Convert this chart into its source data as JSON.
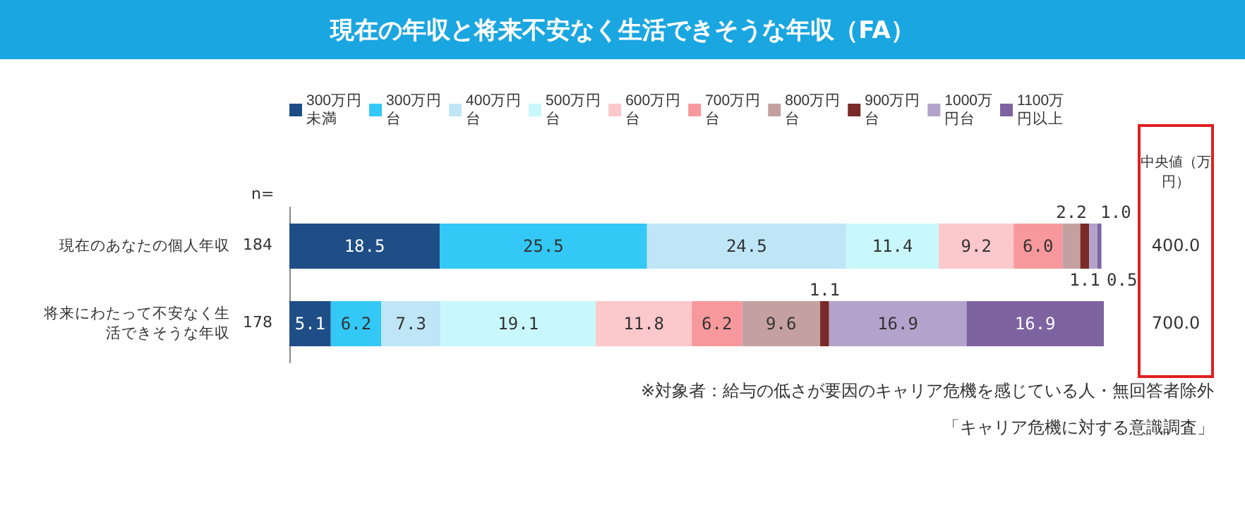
{
  "chart_data": {
    "type": "bar",
    "orientation": "horizontal",
    "stacked": true,
    "data_labels": true,
    "legend": "top",
    "title": "現在の年収と将来不安なく生活できそうな年収（FA）",
    "categories": [
      "現在のあなたの個人年収",
      "将来にわたって不安なく生活できそうな年収"
    ],
    "series": [
      {
        "name": "300万円未満",
        "color": "#1f4e87",
        "values": [
          18.5,
          5.1
        ]
      },
      {
        "name": "300万円台",
        "color": "#33c8f5",
        "values": [
          25.5,
          6.2
        ]
      },
      {
        "name": "400万円台",
        "color": "#bfe6f7",
        "values": [
          24.5,
          7.3
        ]
      },
      {
        "name": "500万円台",
        "color": "#c8f8fb",
        "values": [
          11.4,
          19.1
        ]
      },
      {
        "name": "600万円台",
        "color": "#fbc8cc",
        "values": [
          9.2,
          11.8
        ]
      },
      {
        "name": "700万円台",
        "color": "#f7999c",
        "values": [
          6.0,
          6.2
        ],
        "value_labels": [
          "6.0",
          "6.2"
        ]
      },
      {
        "name": "800万円台",
        "color": "#c4a1a0",
        "values": [
          2.2,
          9.6
        ]
      },
      {
        "name": "900万円台",
        "color": "#7a2a28",
        "values": [
          1.1,
          1.1
        ]
      },
      {
        "name": "1000万円台",
        "color": "#b3a3cc",
        "values": [
          1.0,
          16.9
        ],
        "value_labels": [
          "1.0",
          "16.9"
        ]
      },
      {
        "name": "1100万円以上",
        "color": "#7e63a1",
        "values": [
          0.5,
          16.9
        ]
      }
    ],
    "annotations": [
      "n=",
      "184",
      "178",
      "中央値（万円）",
      "400.0",
      "700.0",
      "※対象者：給与の低さが要因のキャリア危機を感じている人・無回答者除外",
      "「キャリア危機に対する意識調査」"
    ]
  }
}
